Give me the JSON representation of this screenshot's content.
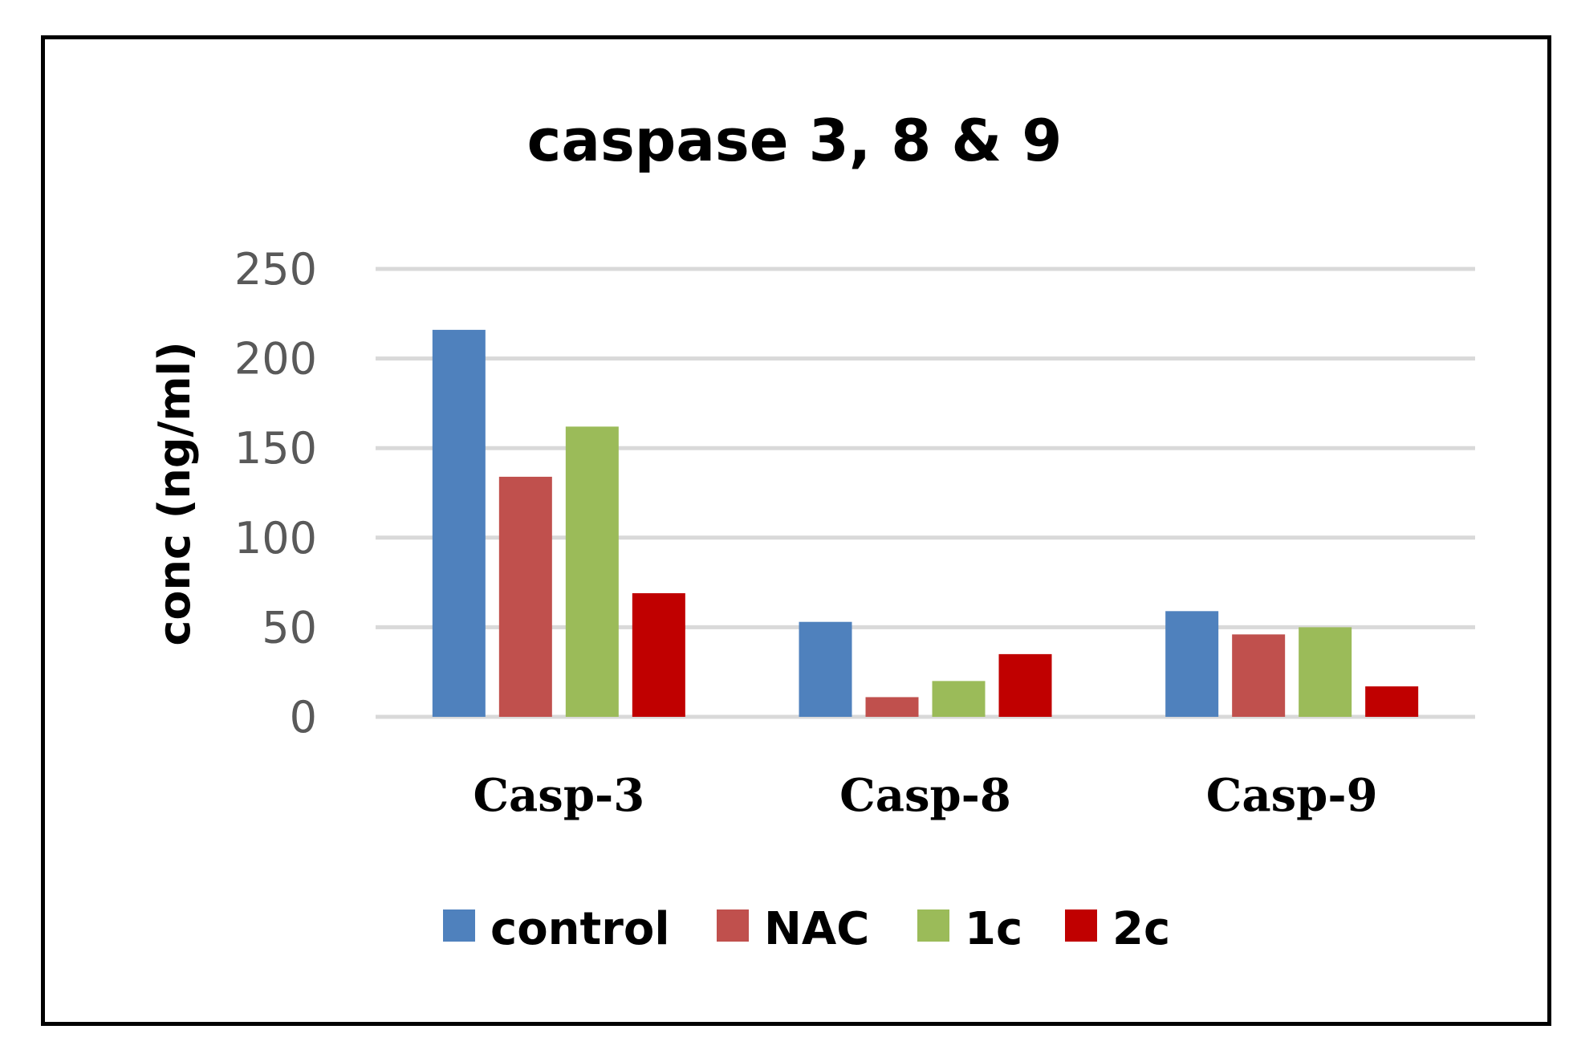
{
  "chart_data": {
    "type": "bar",
    "title": "caspase 3, 8 & 9",
    "xlabel": "",
    "ylabel": "conc (ng/ml)",
    "ylim": [
      0,
      250
    ],
    "yticks": [
      0,
      50,
      100,
      150,
      200,
      250
    ],
    "grid": true,
    "legend_position": "bottom",
    "categories": [
      "Casp-3",
      "Casp-8",
      "Casp-9"
    ],
    "series": [
      {
        "name": "control",
        "color": "#4f81bd",
        "values": [
          216,
          53,
          59
        ]
      },
      {
        "name": "NAC",
        "color": "#c0504d",
        "values": [
          134,
          11,
          46
        ]
      },
      {
        "name": "1c",
        "color": "#9bbb59",
        "values": [
          162,
          20,
          50
        ]
      },
      {
        "name": "2c",
        "color": "#c00000",
        "values": [
          69,
          35,
          17
        ]
      }
    ]
  }
}
